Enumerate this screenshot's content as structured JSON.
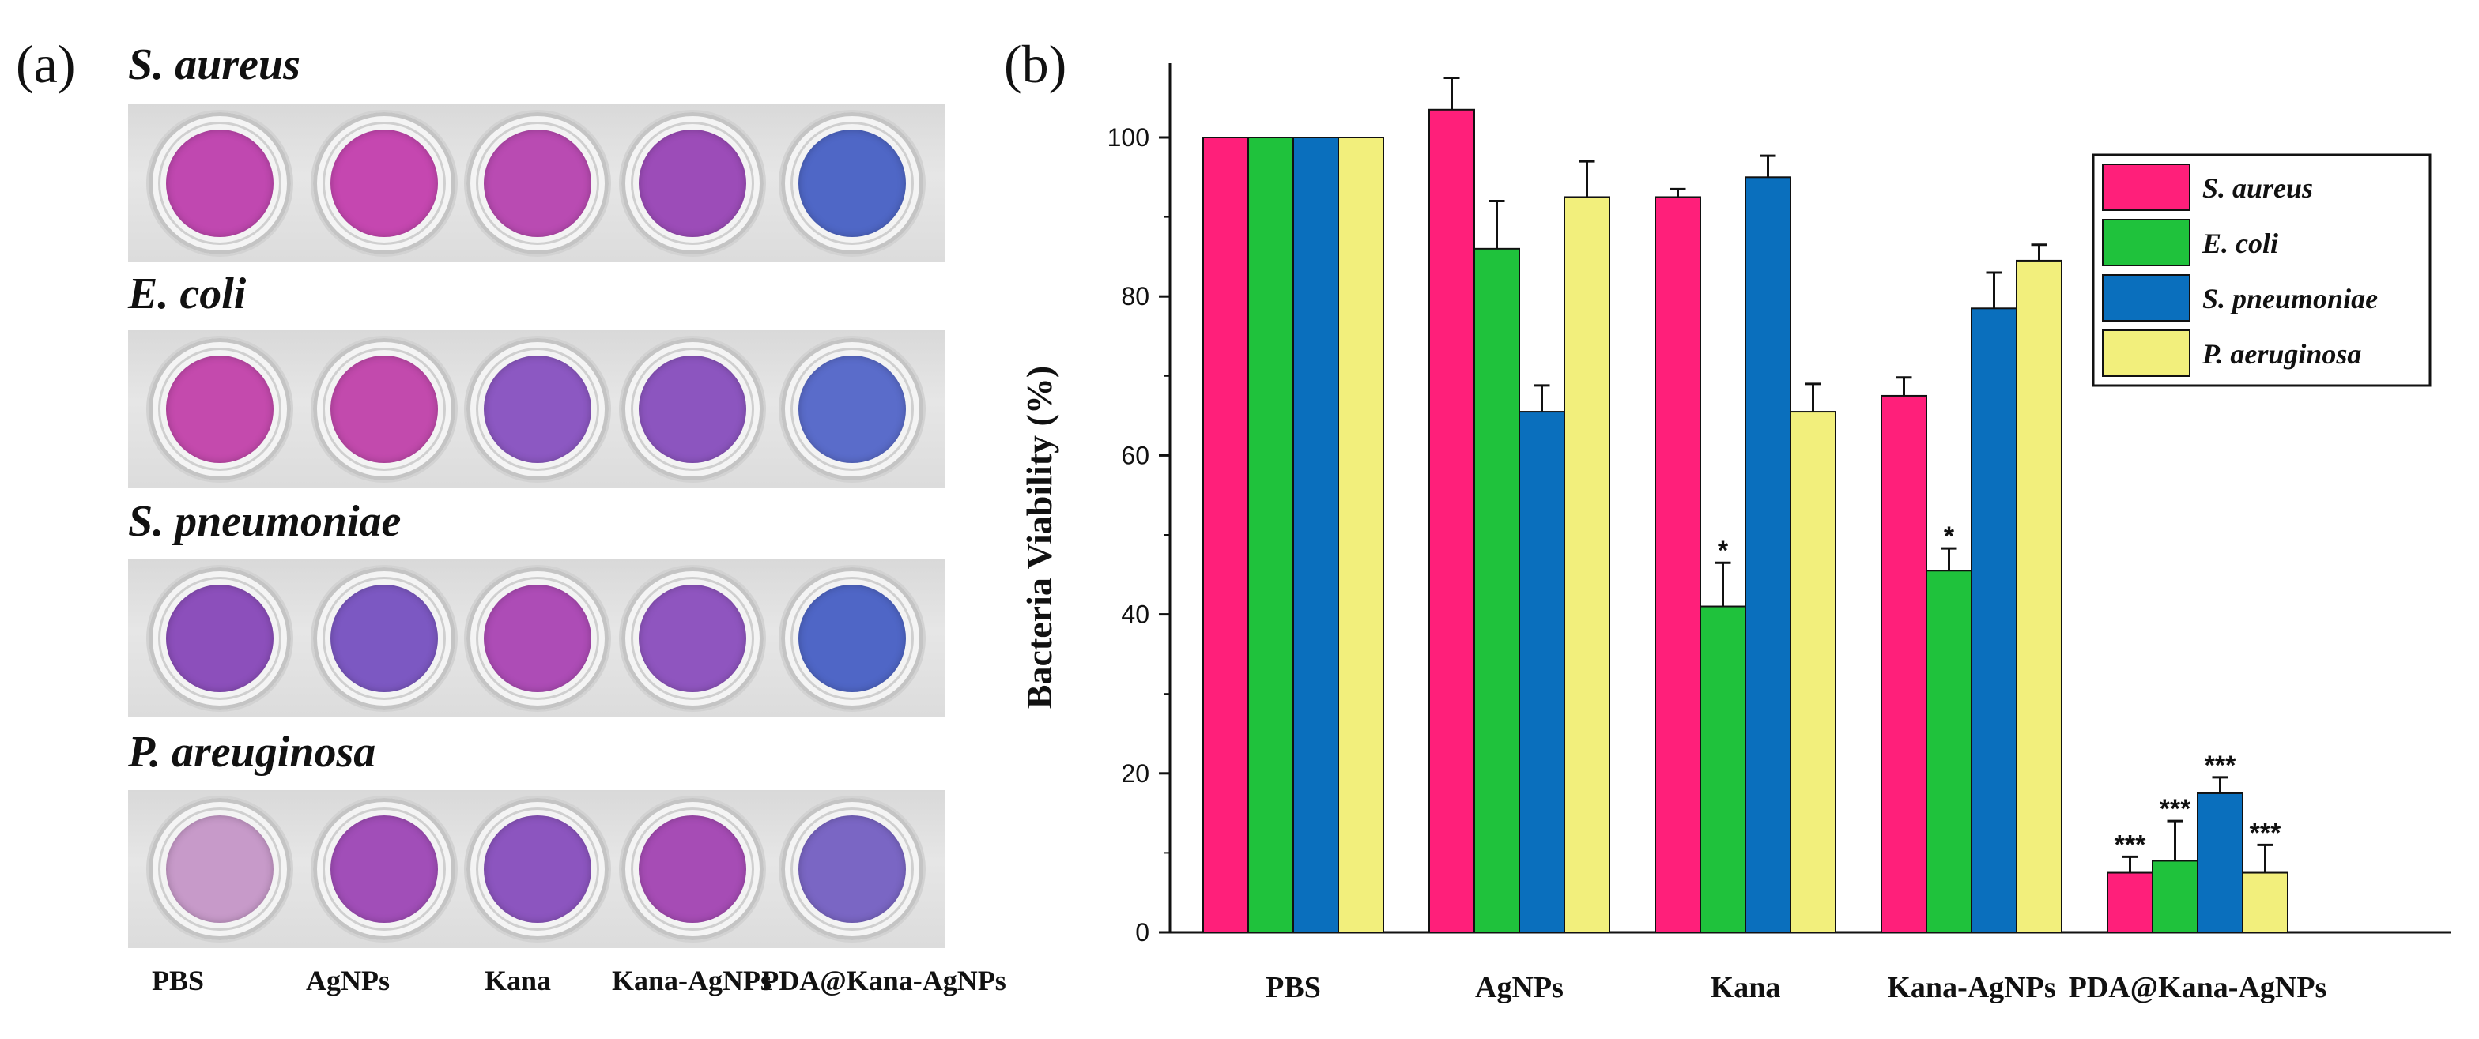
{
  "panel_a": {
    "label": "(a)",
    "plates": [
      {
        "title": "S. aureus",
        "wells": [
          "#c048b0",
          "#c547b0",
          "#b94bb2",
          "#9c4cb8",
          "#4f67c6"
        ]
      },
      {
        "title": "E. coli",
        "wells": [
          "#c44aad",
          "#c24aad",
          "#8c58c2",
          "#8c55bf",
          "#5a6cca"
        ]
      },
      {
        "title": "S. pneumoniae",
        "wells": [
          "#8c4fbb",
          "#7c58c2",
          "#ad4cb6",
          "#8f55bf",
          "#4f66c6"
        ]
      },
      {
        "title": "P. areuginosa",
        "wells": [
          "#c79ac9",
          "#a14eb8",
          "#8c55bf",
          "#a64cb5",
          "#7a66c4"
        ]
      }
    ],
    "sample_labels": [
      "PBS",
      "AgNPs",
      "Kana",
      "Kana-AgNPs",
      "PDA@Kana-AgNPs"
    ]
  },
  "chart_data": {
    "type": "bar",
    "panel_label": "(b)",
    "title": "",
    "xlabel": "",
    "ylabel": "Bacteria Viability (%)",
    "ylim": [
      0,
      108
    ],
    "yticks": [
      0,
      20,
      40,
      60,
      80,
      100
    ],
    "categories": [
      "PBS",
      "AgNPs",
      "Kana",
      "Kana-AgNPs",
      "PDA@Kana-AgNPs"
    ],
    "series": [
      {
        "name": "S. aureus",
        "color": "#ff1f7a",
        "values": [
          100,
          103.5,
          92.5,
          67.5,
          7.5
        ],
        "errors": [
          0,
          4,
          1,
          2.3,
          2
        ]
      },
      {
        "name": "E. coli",
        "color": "#1fc23c",
        "values": [
          100,
          86,
          41,
          45.5,
          9
        ],
        "errors": [
          0,
          6,
          5.5,
          2.8,
          5
        ]
      },
      {
        "name": "S. pneumoniae",
        "color": "#0a6fbd",
        "values": [
          100,
          65.5,
          95,
          78.5,
          17.5
        ],
        "errors": [
          0,
          3.3,
          2.7,
          4.5,
          2
        ]
      },
      {
        "name": "P. aeruginosa",
        "color": "#f2ef7c",
        "values": [
          100,
          92.5,
          65.5,
          84.5,
          7.5
        ],
        "errors": [
          0,
          4.5,
          3.5,
          2,
          3.5
        ]
      }
    ],
    "annotations": [
      {
        "category": "Kana",
        "series": "E. coli",
        "text": "*"
      },
      {
        "category": "Kana-AgNPs",
        "series": "E. coli",
        "text": "*"
      },
      {
        "category": "PDA@Kana-AgNPs",
        "series": "S. aureus",
        "text": "***"
      },
      {
        "category": "PDA@Kana-AgNPs",
        "series": "E. coli",
        "text": "***"
      },
      {
        "category": "PDA@Kana-AgNPs",
        "series": "S. pneumoniae",
        "text": "***"
      },
      {
        "category": "PDA@Kana-AgNPs",
        "series": "P. aeruginosa",
        "text": "***"
      }
    ],
    "legend_position": "top-right"
  }
}
